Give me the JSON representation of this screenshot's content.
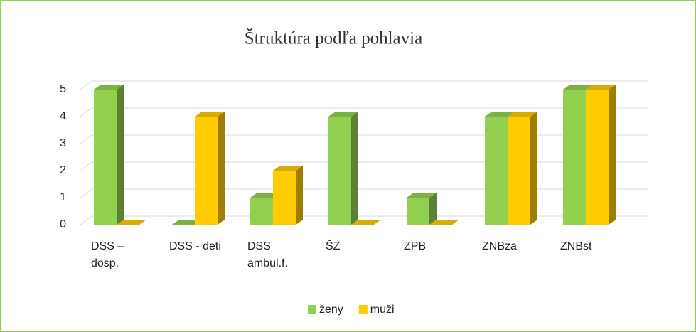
{
  "chart_data": {
    "type": "bar3d",
    "title": "Štruktúra podľa pohlavia",
    "categories": [
      "DSS – dosp.",
      "DSS - deti",
      "DSS ambul.f.",
      "ŠZ",
      "ZPB",
      "ZNBza",
      "ZNBst"
    ],
    "series": [
      {
        "name": "ženy",
        "color": "#92d050",
        "values": [
          5,
          0,
          1,
          4,
          1,
          4,
          5
        ]
      },
      {
        "name": "muži",
        "color": "#ffcc00",
        "values": [
          0,
          4,
          2,
          0,
          0,
          4,
          5
        ]
      }
    ],
    "ylim": [
      0,
      5
    ],
    "yticks": [
      0,
      1,
      2,
      3,
      4,
      5
    ],
    "grid": true,
    "legend": "bottom"
  }
}
